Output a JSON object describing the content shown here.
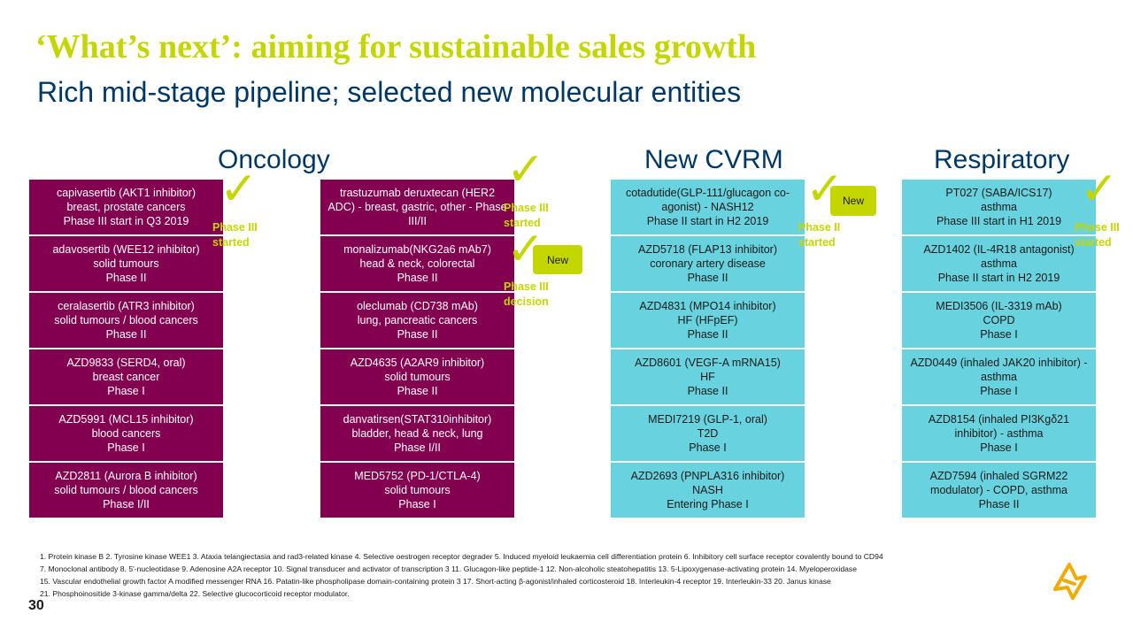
{
  "slide": {
    "title": "‘What’s next’: aiming for sustainable sales growth",
    "subtitle": "Rich mid-stage pipeline; selected new molecular entities",
    "page_number": "30"
  },
  "headers": {
    "oncology": "Oncology",
    "cvrm": "New CVRM",
    "respiratory": "Respiratory"
  },
  "columns": [
    {
      "cells": [
        [
          "capivasertib (AKT1 inhibitor)",
          "breast, prostate cancers",
          "Phase III start in Q3 2019"
        ],
        [
          "adavosertib (WEE12 inhibitor)",
          "solid tumours",
          "Phase II"
        ],
        [
          "ceralasertib (ATR3 inhibitor)",
          "solid tumours / blood cancers",
          "Phase II"
        ],
        [
          "AZD9833 (SERD4, oral)",
          "breast cancer",
          "Phase I"
        ],
        [
          "AZD5991 (MCL15 inhibitor)",
          "blood cancers",
          "Phase I"
        ],
        [
          "AZD2811 (Aurora B inhibitor)",
          "solid tumours / blood cancers",
          "Phase I/II"
        ]
      ]
    },
    {
      "cells": [
        [
          "trastuzumab deruxtecan (HER2",
          "ADC) - breast, gastric, other - Phase",
          "III/II"
        ],
        [
          "monalizumab(NKG2a6 mAb7)",
          "head & neck, colorectal",
          "Phase II"
        ],
        [
          "oleclumab (CD738 mAb)",
          "lung, pancreatic cancers",
          "Phase II"
        ],
        [
          "AZD4635 (A2AR9 inhibitor)",
          "solid tumours",
          "Phase II"
        ],
        [
          "danvatirsen(STAT310inhibitor)",
          "bladder, head & neck, lung",
          "Phase I/II"
        ],
        [
          "MED5752 (PD-1/CTLA-4)",
          "solid tumours",
          "Phase I"
        ]
      ]
    },
    {
      "cells": [
        [
          "cotadutide(GLP-111/glucagon co-",
          "agonist) - NASH12",
          "Phase II start in H2 2019"
        ],
        [
          "AZD5718 (FLAP13 inhibitor)",
          "coronary artery disease",
          "Phase II"
        ],
        [
          "AZD4831 (MPO14 inhibitor)",
          "HF (HFpEF)",
          "Phase II"
        ],
        [
          "AZD8601 (VEGF-A mRNA15)",
          "HF",
          "Phase II"
        ],
        [
          "MEDI7219 (GLP-1, oral)",
          "T2D",
          "Phase I"
        ],
        [
          "AZD2693 (PNPLA316 inhibitor)",
          "NASH",
          "Entering Phase I"
        ]
      ]
    },
    {
      "cells": [
        [
          "PT027 (SABA/ICS17)",
          "asthma",
          "Phase III start in H1 2019"
        ],
        [
          "AZD1402 (IL-4R18 antagonist)",
          "asthma",
          "Phase II start in H2 2019"
        ],
        [
          "MEDI3506 (IL-3319 mAb)",
          "COPD",
          "Phase I"
        ],
        [
          "AZD0449 (inhaled JAK20 inhibitor) -",
          "asthma",
          "Phase I"
        ],
        [
          "AZD8154 (inhaled PI3Kgδ21",
          "inhibitor) - asthma",
          "Phase I"
        ],
        [
          "AZD7594 (inhaled SGRM22",
          "modulator) - COPD, asthma",
          "Phase II"
        ]
      ]
    }
  ],
  "annotations": {
    "check_symbol": "✓",
    "onc1_note": [
      "Phase III",
      "started"
    ],
    "onc2_note_top": [
      "Phase III",
      "started"
    ],
    "onc2_note_bottom": [
      "Phase III",
      "decision"
    ],
    "cvrm_note": [
      "Phase II",
      "started"
    ],
    "resp_note": [
      "Phase III",
      "started"
    ],
    "new_badge": "New"
  },
  "footnotes": [
    "1. Protein kinase B   2. Tyrosine kinase WEE1   3. Ataxia telangiectasia and rad3-related kinase   4. Selective oestrogen receptor degrader   5. Induced myeloid leukaemia cell differentiation protein   6. Inhibitory cell surface receptor covalently bound to CD94",
    "7. Monoclonal antibody   8. 5'-nucleotidase   9. Adenosine A2A receptor   10. Signal transducer and activator of transcription 3   11. Glucagon-like peptide-1   12. Non-alcoholic steatohepatitis   13. 5-Lipoxygenase-activating protein   14. Myeloperoxidase",
    "15. Vascular endothelial growth factor A modified messenger RNA   16. Patatin-like phospholipase domain-containing protein 3   17. Short-acting β-agonist/inhaled corticosteroid   18. Interleukin-4 receptor   19. Interleukin-33   20. Janus kinase",
    "21. Phosphoinositide 3-kinase gamma/delta   22. Selective glucocorticoid receptor modulator."
  ],
  "colors": {
    "title": "#c4d600",
    "subtitle": "#003865",
    "oncology_cell": "#830051",
    "cvrm_cell": "#68d2df",
    "accent": "#c4d600"
  },
  "icons": [
    "checkmark-icon",
    "astrazeneca-logo-icon"
  ]
}
